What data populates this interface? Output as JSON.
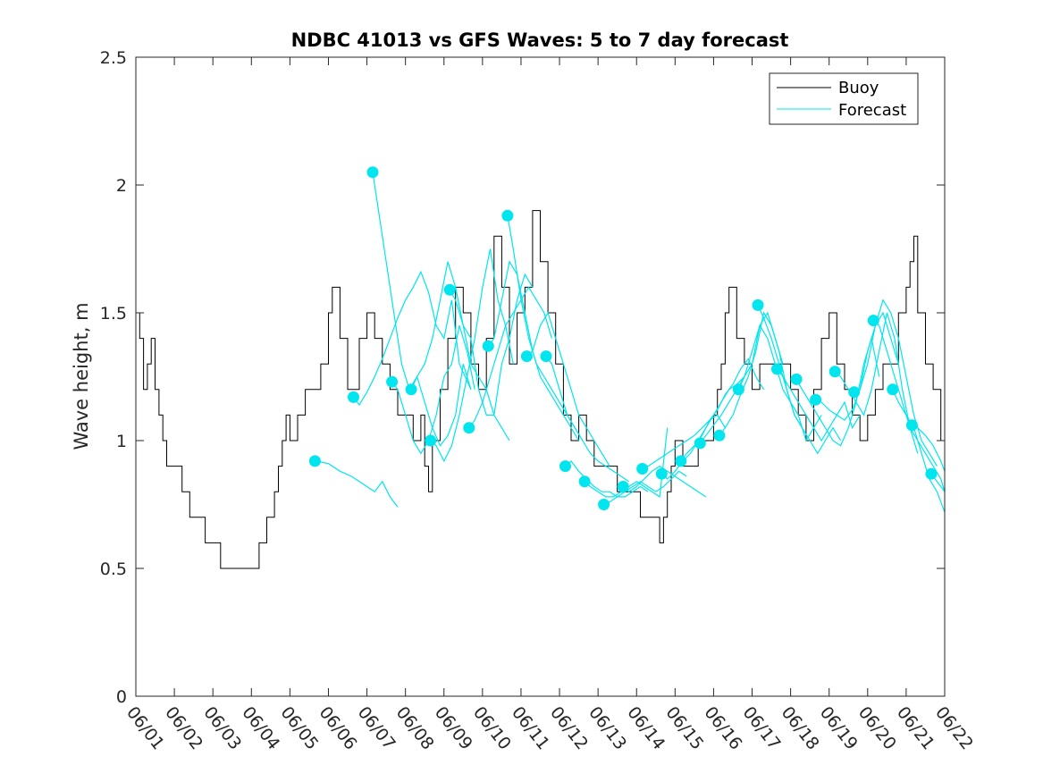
{
  "chart_data": {
    "type": "line",
    "title": "NDBC 41013 vs GFS Waves: 5 to 7 day forecast",
    "xlabel": "",
    "ylabel": "Wave height, m",
    "x_tick_labels": [
      "06/01",
      "06/02",
      "06/03",
      "06/04",
      "06/05",
      "06/06",
      "06/07",
      "06/08",
      "06/09",
      "06/10",
      "06/11",
      "06/12",
      "06/13",
      "06/14",
      "06/15",
      "06/16",
      "06/17",
      "06/18",
      "06/19",
      "06/20",
      "06/21",
      "06/22"
    ],
    "xlim_days": [
      0,
      21
    ],
    "ylim": [
      0,
      2.5
    ],
    "y_ticks": [
      "0",
      "0.5",
      "1",
      "1.5",
      "2",
      "2.5"
    ],
    "grid": false,
    "legend_position": "top-right",
    "colors": {
      "buoy": "#000000",
      "forecast": "#00e5ee"
    },
    "buoy": {
      "name": "Buoy",
      "x": [
        0,
        0.1,
        0.2,
        0.3,
        0.4,
        0.5,
        0.6,
        0.7,
        0.8,
        0.9,
        1.0,
        1.2,
        1.4,
        1.6,
        1.8,
        2.0,
        2.2,
        2.4,
        2.6,
        2.8,
        3.0,
        3.2,
        3.4,
        3.6,
        3.7,
        3.8,
        3.9,
        4.0,
        4.2,
        4.4,
        4.6,
        4.8,
        5.0,
        5.1,
        5.3,
        5.5,
        5.6,
        5.8,
        6.0,
        6.2,
        6.4,
        6.6,
        6.8,
        7.0,
        7.2,
        7.4,
        7.5,
        7.6,
        7.7,
        7.9,
        8.1,
        8.3,
        8.5,
        8.7,
        8.9,
        9.1,
        9.3,
        9.5,
        9.7,
        9.9,
        10.1,
        10.3,
        10.5,
        10.7,
        10.9,
        11.1,
        11.3,
        11.5,
        11.7,
        11.9,
        12.1,
        12.3,
        12.5,
        12.7,
        12.9,
        13.1,
        13.3,
        13.5,
        13.6,
        13.7,
        13.8,
        13.9,
        14.0,
        14.2,
        14.4,
        14.6,
        14.8,
        15.0,
        15.1,
        15.2,
        15.3,
        15.4,
        15.6,
        15.8,
        16.0,
        16.2,
        16.4,
        16.6,
        16.8,
        17.0,
        17.2,
        17.4,
        17.6,
        17.8,
        18.0,
        18.2,
        18.4,
        18.6,
        18.8,
        19.0,
        19.2,
        19.4,
        19.6,
        19.8,
        20.0,
        20.1,
        20.2,
        20.3,
        20.5,
        20.7,
        20.9,
        21.0
      ],
      "y": [
        1.5,
        1.4,
        1.2,
        1.3,
        1.4,
        1.2,
        1.1,
        1.0,
        0.9,
        0.9,
        0.9,
        0.8,
        0.7,
        0.7,
        0.6,
        0.6,
        0.5,
        0.5,
        0.5,
        0.5,
        0.5,
        0.6,
        0.7,
        0.8,
        0.9,
        1.0,
        1.1,
        1.0,
        1.1,
        1.2,
        1.2,
        1.3,
        1.5,
        1.6,
        1.4,
        1.2,
        1.2,
        1.4,
        1.5,
        1.4,
        1.3,
        1.2,
        1.1,
        1.1,
        1.0,
        1.1,
        0.9,
        0.8,
        1.0,
        1.2,
        1.4,
        1.6,
        1.5,
        1.3,
        1.2,
        1.4,
        1.8,
        1.6,
        1.3,
        1.5,
        1.6,
        1.9,
        1.7,
        1.5,
        1.3,
        1.1,
        1.0,
        1.1,
        1.0,
        0.9,
        0.9,
        0.9,
        0.8,
        0.8,
        0.8,
        0.7,
        0.7,
        0.7,
        0.6,
        0.7,
        0.8,
        0.9,
        1.0,
        0.9,
        0.9,
        1.0,
        1.0,
        1.1,
        1.2,
        1.3,
        1.5,
        1.6,
        1.4,
        1.3,
        1.2,
        1.3,
        1.3,
        1.3,
        1.3,
        1.2,
        1.1,
        1.0,
        1.2,
        1.4,
        1.5,
        1.3,
        1.2,
        1.1,
        1.0,
        1.1,
        1.2,
        1.3,
        1.3,
        1.5,
        1.6,
        1.7,
        1.8,
        1.5,
        1.3,
        1.2,
        1.0,
        0.9
      ]
    },
    "forecast": {
      "name": "Forecast",
      "runs": [
        {
          "x": [
            4.65,
            5.0,
            5.3,
            5.6,
            6.0,
            6.2,
            6.4,
            6.6,
            6.8
          ],
          "y": [
            0.92,
            0.91,
            0.88,
            0.86,
            0.82,
            0.8,
            0.84,
            0.78,
            0.74
          ]
        },
        {
          "x": [
            5.65,
            5.8,
            6.0,
            6.2,
            6.4,
            6.6,
            6.8,
            7.0,
            7.2,
            7.4,
            7.6,
            7.8,
            8.0,
            8.2,
            8.4,
            8.7
          ],
          "y": [
            1.17,
            1.14,
            1.19,
            1.25,
            1.32,
            1.4,
            1.48,
            1.55,
            1.6,
            1.66,
            1.58,
            1.45,
            1.4,
            1.55,
            1.3,
            1.2
          ]
        },
        {
          "x": [
            6.15,
            6.3,
            6.5,
            6.7,
            6.9,
            7.1,
            7.3,
            7.5,
            7.7,
            7.9,
            8.1,
            8.3,
            8.5,
            8.7
          ],
          "y": [
            2.05,
            1.9,
            1.7,
            1.5,
            1.3,
            1.2,
            1.25,
            1.15,
            1.05,
            0.98,
            1.02,
            1.1,
            1.3,
            1.2
          ]
        },
        {
          "x": [
            6.65,
            6.8,
            7.0,
            7.2,
            7.4,
            7.6,
            7.8,
            8.0,
            8.2,
            8.4,
            8.6,
            8.8
          ],
          "y": [
            1.23,
            1.2,
            1.1,
            1.0,
            0.95,
            1.0,
            1.1,
            1.25,
            1.3,
            1.45,
            1.35,
            1.2
          ]
        },
        {
          "x": [
            7.15,
            7.3,
            7.5,
            7.7,
            7.9,
            8.1,
            8.3,
            8.5,
            8.7,
            8.9,
            9.1,
            9.3,
            9.5,
            9.7
          ],
          "y": [
            1.2,
            1.25,
            1.3,
            1.4,
            1.55,
            1.7,
            1.6,
            1.45,
            1.3,
            1.25,
            1.2,
            1.1,
            1.05,
            1.0
          ]
        },
        {
          "x": [
            7.65,
            7.8,
            8.0,
            8.2,
            8.4,
            8.6,
            8.8,
            9.0,
            9.2,
            9.4,
            9.6,
            9.8
          ],
          "y": [
            1.0,
            0.98,
            0.92,
            0.98,
            1.1,
            1.25,
            1.4,
            1.6,
            1.75,
            1.55,
            1.45,
            1.3
          ]
        },
        {
          "x": [
            8.15,
            8.3,
            8.5,
            8.7,
            8.9,
            9.1,
            9.3,
            9.5,
            9.7,
            9.9,
            10.1,
            10.3
          ],
          "y": [
            1.59,
            1.55,
            1.45,
            1.4,
            1.2,
            1.1,
            1.1,
            1.3,
            1.4,
            1.55,
            1.65,
            1.6
          ]
        },
        {
          "x": [
            8.65,
            8.8,
            9.0,
            9.2,
            9.4,
            9.6,
            9.8,
            10.0,
            10.2,
            10.4,
            10.6,
            10.8
          ],
          "y": [
            1.05,
            1.08,
            1.15,
            1.25,
            1.35,
            1.45,
            1.5,
            1.55,
            1.6,
            1.55,
            1.5,
            1.4
          ]
        },
        {
          "x": [
            9.15,
            9.3,
            9.5,
            9.7,
            9.9,
            10.1,
            10.3,
            10.5,
            10.7,
            10.9,
            11.1,
            11.3,
            11.5
          ],
          "y": [
            1.37,
            1.4,
            1.55,
            1.7,
            1.65,
            1.5,
            1.35,
            1.25,
            1.2,
            1.15,
            1.1,
            1.05,
            1.0
          ]
        },
        {
          "x": [
            9.65,
            9.8,
            10.0,
            10.2,
            10.4,
            10.6,
            10.8,
            11.0,
            11.2,
            11.4,
            11.6
          ],
          "y": [
            1.88,
            1.75,
            1.55,
            1.4,
            1.3,
            1.25,
            1.2,
            1.15,
            1.1,
            1.05,
            1.0
          ]
        },
        {
          "x": [
            10.15,
            10.3,
            10.5,
            10.7,
            10.9,
            11.1,
            11.3,
            11.5,
            11.7,
            11.9,
            12.1,
            12.3
          ],
          "y": [
            1.33,
            1.35,
            1.45,
            1.5,
            1.4,
            1.3,
            1.2,
            1.1,
            1.05,
            1.0,
            0.95,
            0.9
          ]
        },
        {
          "x": [
            10.65,
            10.8,
            11.0,
            11.2,
            11.4,
            11.6,
            11.8,
            12.0,
            12.2,
            12.4,
            12.6,
            12.8
          ],
          "y": [
            1.33,
            1.3,
            1.2,
            1.1,
            1.05,
            1.0,
            0.95,
            0.92,
            0.9,
            0.88,
            0.86,
            0.84
          ]
        },
        {
          "x": [
            11.15,
            11.3,
            11.5,
            11.7,
            11.9,
            12.1,
            12.3,
            12.5,
            12.7,
            12.9,
            13.1,
            13.3
          ],
          "y": [
            0.9,
            0.92,
            0.88,
            0.85,
            0.82,
            0.8,
            0.8,
            0.78,
            0.78,
            0.8,
            0.82,
            0.8
          ]
        },
        {
          "x": [
            11.65,
            11.8,
            12.0,
            12.2,
            12.4,
            12.6,
            12.8,
            13.0,
            13.2,
            13.4,
            13.6,
            13.8
          ],
          "y": [
            0.84,
            0.82,
            0.8,
            0.78,
            0.78,
            0.8,
            0.82,
            0.84,
            0.82,
            0.8,
            0.78,
            1.05
          ]
        },
        {
          "x": [
            12.15,
            12.3,
            12.5,
            12.7,
            12.9,
            13.1,
            13.3,
            13.5,
            13.7,
            13.9,
            14.1,
            14.3
          ],
          "y": [
            0.75,
            0.76,
            0.78,
            0.8,
            0.82,
            0.84,
            0.82,
            0.8,
            0.82,
            0.85,
            0.88,
            0.86
          ]
        },
        {
          "x": [
            12.65,
            12.8,
            13.0,
            13.2,
            13.4,
            13.6,
            13.8,
            14.0,
            14.2,
            14.4,
            14.6,
            14.8
          ],
          "y": [
            0.82,
            0.8,
            0.82,
            0.85,
            0.88,
            0.9,
            0.88,
            0.86,
            0.84,
            0.82,
            0.8,
            0.78
          ]
        },
        {
          "x": [
            13.15,
            13.3,
            13.5,
            13.7,
            13.9,
            14.1,
            14.3,
            14.5,
            14.7,
            14.9,
            15.1,
            15.3
          ],
          "y": [
            0.89,
            0.9,
            0.92,
            0.94,
            0.96,
            0.98,
            1.0,
            1.02,
            1.05,
            1.08,
            1.1,
            1.05
          ]
        },
        {
          "x": [
            13.65,
            13.8,
            14.0,
            14.2,
            14.4,
            14.6,
            14.8,
            15.0,
            15.2,
            15.4,
            15.6,
            15.8
          ],
          "y": [
            0.87,
            0.85,
            0.88,
            0.92,
            0.95,
            1.0,
            1.05,
            1.1,
            1.15,
            1.2,
            1.22,
            1.25
          ]
        },
        {
          "x": [
            14.15,
            14.3,
            14.5,
            14.7,
            14.9,
            15.1,
            15.3,
            15.5,
            15.7,
            15.9,
            16.1,
            16.3
          ],
          "y": [
            0.92,
            0.95,
            0.98,
            1.02,
            1.08,
            1.12,
            1.18,
            1.22,
            1.28,
            1.32,
            1.25,
            1.2
          ]
        },
        {
          "x": [
            14.65,
            14.8,
            15.0,
            15.2,
            15.4,
            15.6,
            15.8,
            16.0,
            16.2,
            16.4,
            16.6,
            16.8
          ],
          "y": [
            0.99,
            1.02,
            1.06,
            1.1,
            1.15,
            1.2,
            1.25,
            1.3,
            1.45,
            1.5,
            1.4,
            1.3
          ]
        },
        {
          "x": [
            15.15,
            15.3,
            15.5,
            15.7,
            15.9,
            16.1,
            16.3,
            16.5,
            16.7,
            16.9,
            17.1,
            17.3
          ],
          "y": [
            1.02,
            1.05,
            1.1,
            1.18,
            1.25,
            1.35,
            1.5,
            1.45,
            1.35,
            1.2,
            1.1,
            1.05
          ]
        },
        {
          "x": [
            15.65,
            15.8,
            16.0,
            16.2,
            16.4,
            16.6,
            16.8,
            17.0,
            17.2,
            17.4,
            17.6,
            17.8
          ],
          "y": [
            1.2,
            1.25,
            1.35,
            1.45,
            1.4,
            1.3,
            1.2,
            1.15,
            1.1,
            1.0,
            1.05,
            1.1
          ]
        },
        {
          "x": [
            16.15,
            16.3,
            16.5,
            16.7,
            16.9,
            17.1,
            17.3,
            17.5,
            17.7,
            17.9,
            18.1,
            18.3
          ],
          "y": [
            1.53,
            1.48,
            1.4,
            1.3,
            1.2,
            1.1,
            1.05,
            1.0,
            0.95,
            1.0,
            1.05,
            1.0
          ]
        },
        {
          "x": [
            16.65,
            16.8,
            17.0,
            17.2,
            17.4,
            17.6,
            17.8,
            18.0,
            18.2,
            18.4,
            18.6,
            18.8
          ],
          "y": [
            1.28,
            1.25,
            1.2,
            1.15,
            1.1,
            1.05,
            1.0,
            1.05,
            1.1,
            1.15,
            1.05,
            1.1
          ]
        },
        {
          "x": [
            17.15,
            17.3,
            17.5,
            17.7,
            17.9,
            18.1,
            18.3,
            18.5,
            18.7,
            18.9,
            19.1,
            19.3
          ],
          "y": [
            1.24,
            1.2,
            1.15,
            1.1,
            1.05,
            1.0,
            0.98,
            1.05,
            1.15,
            1.3,
            1.4,
            1.25
          ]
        },
        {
          "x": [
            17.65,
            17.8,
            18.0,
            18.2,
            18.4,
            18.6,
            18.8,
            19.0,
            19.2,
            19.4,
            19.6,
            19.8
          ],
          "y": [
            1.16,
            1.15,
            1.12,
            1.1,
            1.08,
            1.12,
            1.2,
            1.35,
            1.45,
            1.5,
            1.4,
            1.3
          ]
        },
        {
          "x": [
            18.15,
            18.3,
            18.5,
            18.7,
            18.9,
            19.1,
            19.3,
            19.5,
            19.7,
            19.9,
            20.1,
            20.3
          ],
          "y": [
            1.27,
            1.25,
            1.2,
            1.15,
            1.1,
            1.2,
            1.35,
            1.5,
            1.4,
            1.2,
            1.05,
            0.95
          ]
        },
        {
          "x": [
            18.65,
            18.8,
            19.0,
            19.2,
            19.4,
            19.6,
            19.8,
            20.0,
            20.2,
            20.4,
            20.6,
            20.8
          ],
          "y": [
            1.19,
            1.2,
            1.3,
            1.45,
            1.55,
            1.5,
            1.4,
            1.25,
            1.1,
            1.0,
            0.95,
            0.9
          ]
        },
        {
          "x": [
            19.15,
            19.3,
            19.5,
            19.7,
            19.9,
            20.1,
            20.3,
            20.5,
            20.7,
            20.9,
            21.0
          ],
          "y": [
            1.47,
            1.45,
            1.35,
            1.25,
            1.15,
            1.05,
            1.0,
            0.95,
            0.9,
            0.85,
            0.8
          ]
        },
        {
          "x": [
            19.65,
            19.8,
            20.0,
            20.2,
            20.4,
            20.6,
            20.8,
            21.0
          ],
          "y": [
            1.2,
            1.15,
            1.1,
            1.05,
            0.95,
            0.85,
            0.8,
            0.72
          ]
        },
        {
          "x": [
            20.15,
            20.3,
            20.5,
            20.7,
            20.9,
            21.0
          ],
          "y": [
            1.06,
            1.05,
            1.02,
            0.98,
            0.92,
            0.88
          ]
        },
        {
          "x": [
            20.65,
            20.8,
            21.0
          ],
          "y": [
            0.87,
            0.84,
            0.8
          ]
        }
      ]
    }
  }
}
